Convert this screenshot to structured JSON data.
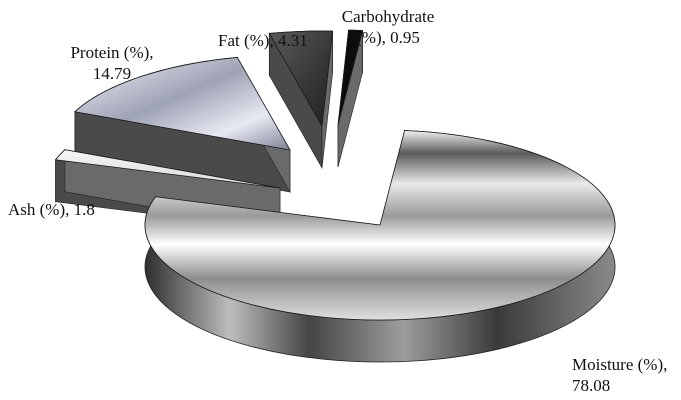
{
  "chart_data": {
    "type": "pie",
    "style": "3d-exploded",
    "title": "",
    "categories": [
      "Moisture (%)",
      "Ash (%)",
      "Protein (%)",
      "Fat (%)",
      "Carbohydrate (%)"
    ],
    "values": [
      78.08,
      1.8,
      14.79,
      4.31,
      0.95
    ],
    "labels": [
      {
        "name_lines": [
          "Moisture (%),"
        ],
        "value_text": "78.08"
      },
      {
        "name_lines": [
          "Ash (%), 1.8"
        ],
        "value_text": ""
      },
      {
        "name_lines": [
          "Protein (%),"
        ],
        "value_text": "14.79"
      },
      {
        "name_lines": [
          "Fat (%), 4.31"
        ],
        "value_text": ""
      },
      {
        "name_lines": [
          "Carbohydrate"
        ],
        "value_text": "(%), 0.95"
      }
    ],
    "colors": {
      "Moisture (%)": "#cfcfcf",
      "Ash (%)": "#8a8a8a",
      "Protein (%)": "#b9bcc8",
      "Fat (%)": "#3a3a3a",
      "Carbohydrate (%)": "#0d0d0d"
    }
  }
}
